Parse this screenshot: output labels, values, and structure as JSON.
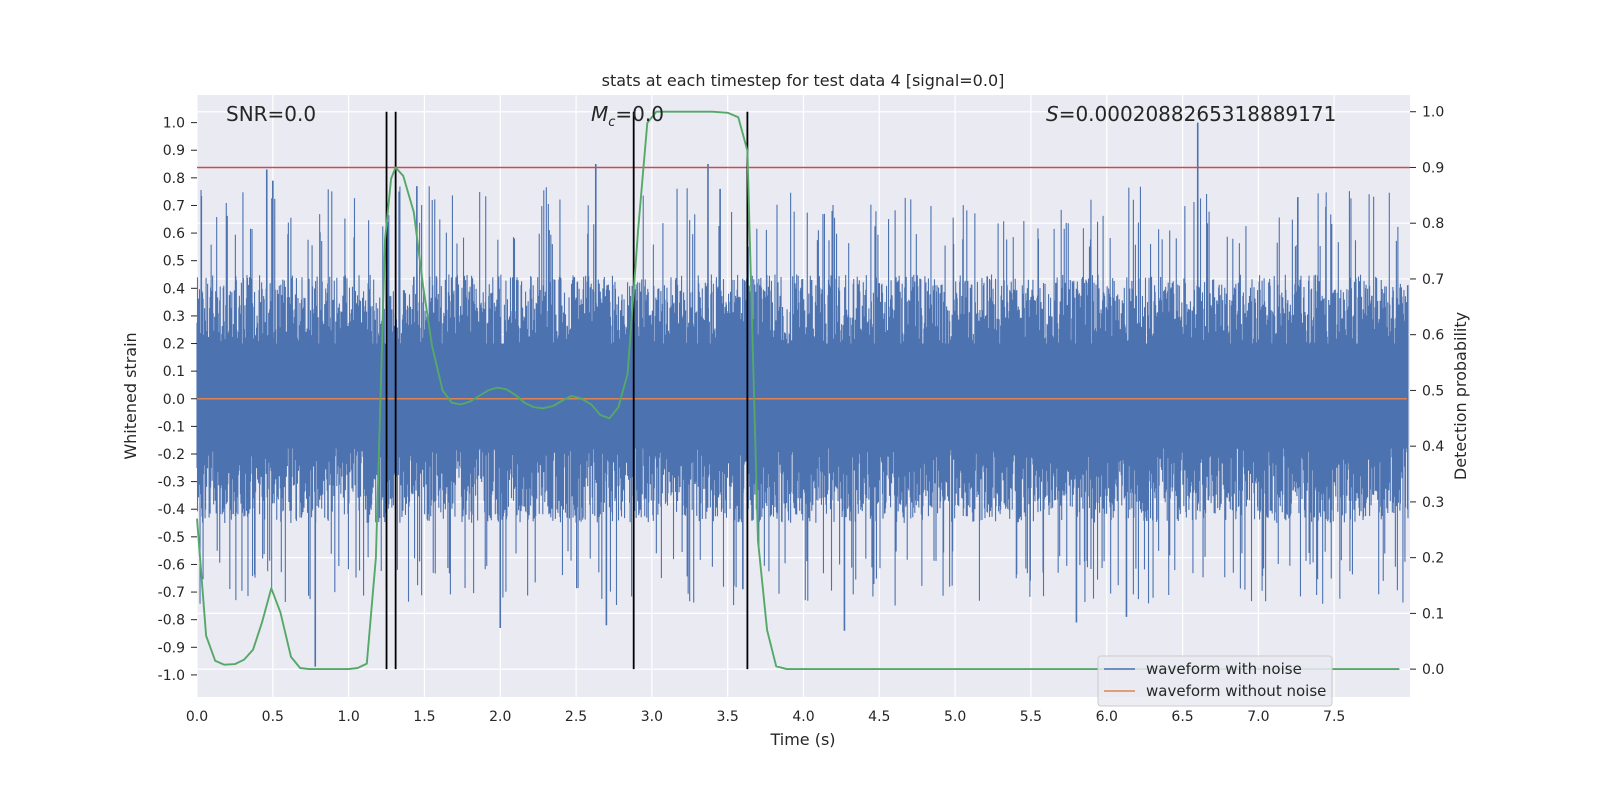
{
  "chart_data": {
    "type": "line",
    "title": "stats at each timestep for test data 4 [signal=0.0]",
    "xlabel": "Time (s)",
    "ylabel": "Whitened strain",
    "ylabel_right": "Detection probability",
    "xlim": [
      0.0,
      8.0
    ],
    "ylim": [
      -1.08,
      1.1
    ],
    "ylim_right": [
      -0.05,
      1.03
    ],
    "x_ticks": [
      0.0,
      0.5,
      1.0,
      1.5,
      2.0,
      2.5,
      3.0,
      3.5,
      4.0,
      4.5,
      5.0,
      5.5,
      6.0,
      6.5,
      7.0,
      7.5
    ],
    "x_tick_labels": [
      "0.0",
      "0.5",
      "1.0",
      "1.5",
      "2.0",
      "2.5",
      "3.0",
      "3.5",
      "4.0",
      "4.5",
      "5.0",
      "5.5",
      "6.0",
      "6.5",
      "7.0",
      "7.5"
    ],
    "y_ticks": [
      1.0,
      0.9,
      0.8,
      0.7,
      0.6,
      0.5,
      0.4,
      0.3,
      0.2,
      0.1,
      0.0,
      -0.1,
      -0.2,
      -0.3,
      -0.4,
      -0.5,
      -0.6,
      -0.7,
      -0.8,
      -0.9,
      -1.0
    ],
    "y_tick_labels": [
      "1.0",
      "0.9",
      "0.8",
      "0.7",
      "0.6",
      "0.5",
      "0.4",
      "0.3",
      "0.2",
      "0.1",
      "0.0",
      "-0.1",
      "-0.2",
      "-0.3",
      "-0.4",
      "-0.5",
      "-0.6",
      "-0.7",
      "-0.8",
      "-0.9",
      "-1.0"
    ],
    "y_right_ticks": [
      1.0,
      0.9,
      0.8,
      0.7,
      0.6,
      0.5,
      0.4,
      0.3,
      0.2,
      0.1,
      0.0
    ],
    "y_right_tick_labels": [
      "1.0",
      "0.9",
      "0.8",
      "0.7",
      "0.6",
      "0.5",
      "0.4",
      "0.3",
      "0.2",
      "0.1",
      "0.0"
    ],
    "annotations": {
      "snr": "SNR=0.0",
      "mc_symbol": "M",
      "mc_sub": "c",
      "mc_value": "=0.0",
      "s_symbol": "S",
      "s_value": "=0.0002088265318889171"
    },
    "legend": {
      "position": "lower-right",
      "entries": [
        "waveform with noise",
        "waveform without noise"
      ]
    },
    "colors": {
      "noise": "#4c72b0",
      "clean": "#dd8452",
      "probability": "#55a868",
      "threshold": "#c44e52",
      "markers": "#000000",
      "background": "#eaeaf2",
      "grid": "#ffffff"
    },
    "threshold_probability": 0.9,
    "vertical_markers_s": [
      1.25,
      1.31,
      2.88,
      3.63
    ],
    "noise_series": {
      "name": "waveform with noise",
      "envelope_typical_upper": 0.45,
      "envelope_typical_lower": -0.45,
      "spikes": [
        {
          "x": 0.46,
          "y": 0.83
        },
        {
          "x": 0.78,
          "y": -0.97
        },
        {
          "x": 1.45,
          "y": 0.77
        },
        {
          "x": 2.0,
          "y": -0.83
        },
        {
          "x": 2.63,
          "y": 0.85
        },
        {
          "x": 2.7,
          "y": -0.82
        },
        {
          "x": 3.37,
          "y": 0.85
        },
        {
          "x": 3.6,
          "y": -0.69
        },
        {
          "x": 4.27,
          "y": -0.84
        },
        {
          "x": 5.8,
          "y": -0.81
        },
        {
          "x": 6.13,
          "y": -0.79
        },
        {
          "x": 6.6,
          "y": 1.0
        },
        {
          "x": 7.26,
          "y": 0.73
        },
        {
          "x": 0.5,
          "y": 0.79
        },
        {
          "x": 3.45,
          "y": 0.76
        }
      ]
    },
    "clean_series": {
      "name": "waveform without noise",
      "x": [
        0.0,
        8.0
      ],
      "y": [
        0.0,
        0.0
      ]
    },
    "probability_series": {
      "name": "detection probability",
      "x": [
        0.0,
        0.06,
        0.12,
        0.18,
        0.25,
        0.31,
        0.37,
        0.43,
        0.49,
        0.55,
        0.62,
        0.68,
        0.74,
        0.8,
        0.9,
        1.0,
        1.06,
        1.12,
        1.18,
        1.24,
        1.28,
        1.31,
        1.36,
        1.43,
        1.49,
        1.55,
        1.62,
        1.68,
        1.74,
        1.8,
        1.86,
        1.92,
        1.98,
        2.04,
        2.1,
        2.16,
        2.22,
        2.28,
        2.35,
        2.41,
        2.47,
        2.53,
        2.6,
        2.66,
        2.72,
        2.78,
        2.84,
        2.91,
        2.97,
        3.03,
        3.1,
        3.2,
        3.3,
        3.4,
        3.5,
        3.57,
        3.63,
        3.7,
        3.76,
        3.82,
        3.89,
        4.0,
        5.0,
        6.0,
        7.0,
        7.93
      ],
      "y": [
        0.27,
        0.06,
        0.015,
        0.008,
        0.009,
        0.017,
        0.035,
        0.085,
        0.145,
        0.102,
        0.022,
        0.002,
        0.0,
        0.0,
        0.0,
        0.0,
        0.002,
        0.01,
        0.2,
        0.77,
        0.88,
        0.9,
        0.885,
        0.82,
        0.69,
        0.58,
        0.5,
        0.478,
        0.475,
        0.48,
        0.49,
        0.5,
        0.505,
        0.502,
        0.492,
        0.478,
        0.47,
        0.468,
        0.472,
        0.482,
        0.49,
        0.486,
        0.475,
        0.456,
        0.45,
        0.47,
        0.53,
        0.79,
        0.98,
        1.0,
        1.0,
        1.0,
        1.0,
        1.0,
        0.998,
        0.99,
        0.93,
        0.23,
        0.07,
        0.005,
        0.0,
        0.0,
        0.0,
        0.0,
        0.0,
        0.0
      ]
    }
  }
}
